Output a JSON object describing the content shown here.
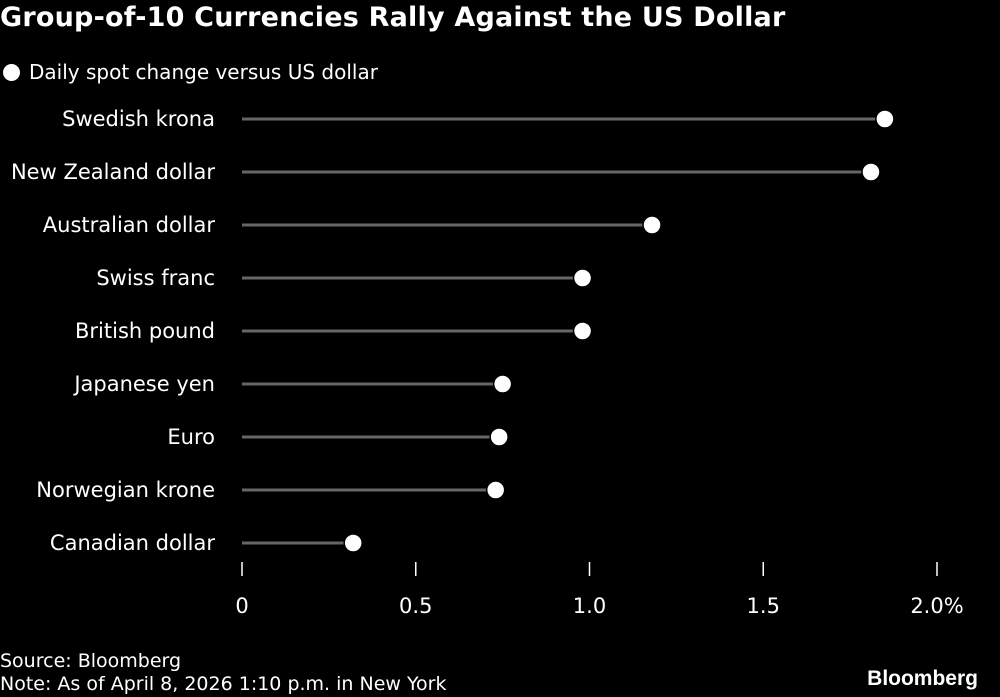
{
  "title": "Group-of-10 Currencies Rally Against the US Dollar",
  "legend": {
    "label": "Daily spot change versus US dollar"
  },
  "chart_data": {
    "type": "lollipop",
    "title": "Group-of-10 Currencies Rally Against the US Dollar",
    "xlabel": "",
    "ylabel": "",
    "categories": [
      "Swedish krona",
      "New Zealand dollar",
      "Australian dollar",
      "Swiss franc",
      "British pound",
      "Japanese yen",
      "Euro",
      "Norwegian krone",
      "Canadian dollar"
    ],
    "series": [
      {
        "name": "Daily spot change versus US dollar",
        "values": [
          1.85,
          1.81,
          1.18,
          0.98,
          0.98,
          0.75,
          0.74,
          0.73,
          0.32
        ]
      }
    ],
    "xlim": [
      0,
      2.0
    ],
    "xticks": [
      0,
      0.5,
      1.0,
      1.5,
      2.0
    ],
    "xtick_labels": [
      "0",
      "0.5",
      "1.0",
      "1.5",
      "2.0%"
    ],
    "grid": false,
    "legend_position": "top-left",
    "colors": {
      "background": "#000000",
      "marker": "#ffffff",
      "stem": "#666666",
      "text": "#ffffff"
    }
  },
  "footer": {
    "source": "Source: Bloomberg",
    "note": "Note: As of April 8, 2026 1:10 p.m. in New York",
    "brand": "Bloomberg"
  }
}
